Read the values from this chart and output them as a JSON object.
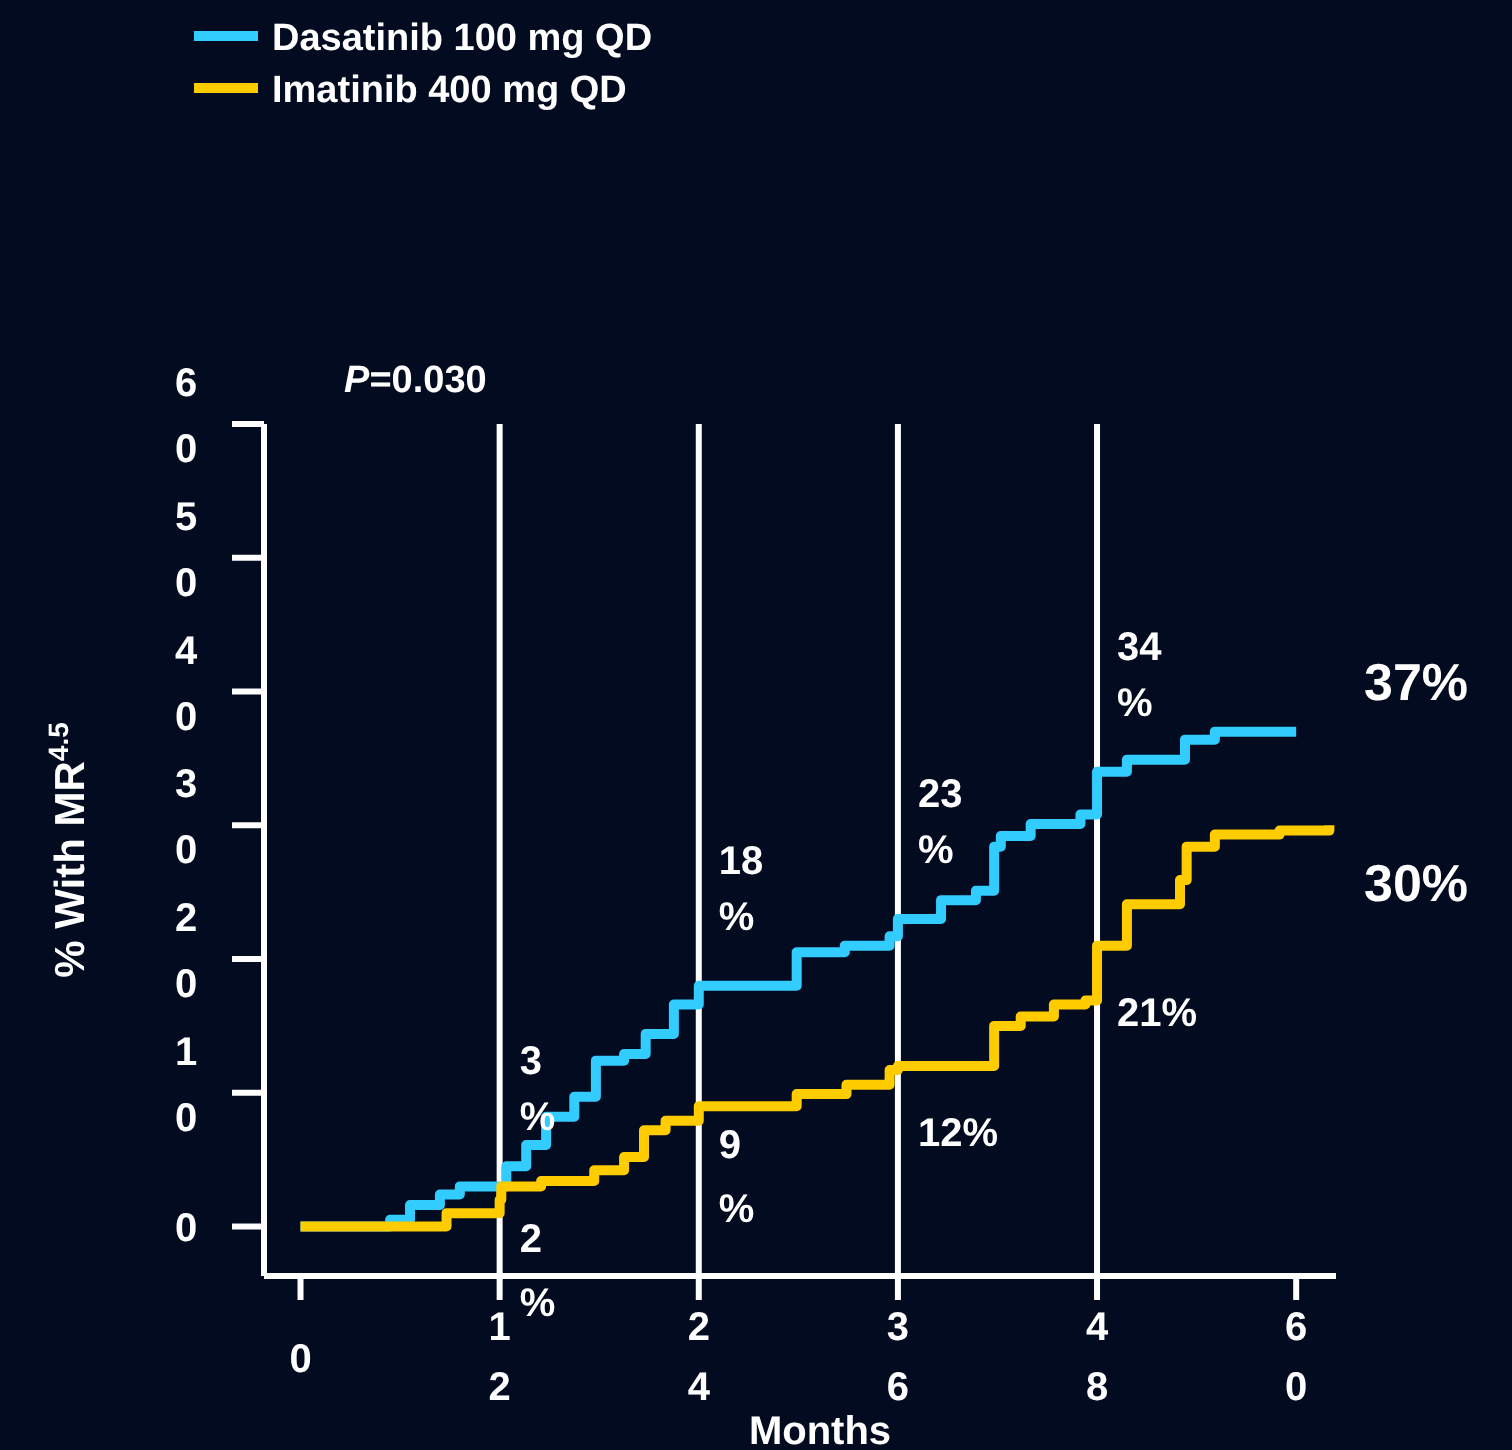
{
  "chart_data": {
    "type": "step",
    "xlabel": "Months",
    "ylabel": "% With MR$^{4.5}$",
    "annotations": [
      "P=0.030"
    ],
    "xlim": [
      -2.2,
      62.4
    ],
    "ylim": [
      -3.7,
      60
    ],
    "xticks": [
      0,
      12,
      24,
      36,
      48,
      60
    ],
    "yticks": [
      0,
      10,
      20,
      30,
      40,
      50,
      60
    ],
    "grid": false,
    "legend": "top left",
    "marker": "none",
    "line_style": "solid",
    "ref_lines": [
      {
        "axis": "x",
        "value": 12,
        "color": "#ffffff"
      },
      {
        "axis": "x",
        "value": 24,
        "color": "#ffffff"
      },
      {
        "axis": "x",
        "value": 36,
        "color": "#ffffff"
      },
      {
        "axis": "x",
        "value": 48,
        "color": "#ffffff"
      }
    ],
    "series": [
      {
        "name": "Dasatinib 100 mg QD",
        "color": "#33ccff",
        "x": [
          0,
          5.4,
          6.6,
          8.4,
          9.6,
          12,
          12.4,
          13.6,
          14.8,
          16.5,
          17.8,
          19.5,
          20.8,
          22.5,
          24,
          29.9,
          32.8,
          35.5,
          36,
          38.6,
          40.7,
          41.8,
          42.2,
          44,
          47,
          48,
          49.8,
          53.3,
          55.1,
          60
        ],
        "values": [
          0,
          0.5,
          1.6,
          2.4,
          3.0,
          3,
          4.5,
          6.1,
          8.2,
          9.7,
          12.4,
          12.9,
          14.4,
          16.6,
          18,
          20.5,
          21.0,
          21.7,
          23,
          24.4,
          25.1,
          28.4,
          29.2,
          30.1,
          30.8,
          34,
          34.9,
          36.4,
          37,
          37
        ],
        "value_labels": [
          null,
          null,
          null,
          null,
          null,
          "3%",
          null,
          null,
          null,
          null,
          null,
          null,
          null,
          null,
          "18%",
          null,
          null,
          null,
          "23%",
          null,
          null,
          null,
          null,
          null,
          null,
          "34%",
          null,
          null,
          null,
          "37%"
        ]
      },
      {
        "name": "Imatinib 400 mg QD",
        "color": "#ffcc00",
        "x": [
          0,
          8.8,
          12,
          12.1,
          14.5,
          17.7,
          19.5,
          20.7,
          22,
          24,
          29.9,
          32.9,
          35.5,
          36,
          41.8,
          43.4,
          45.4,
          47.3,
          48,
          49.8,
          53,
          53.4,
          55.1,
          59,
          62
        ],
        "values": [
          0,
          1.0,
          2,
          3.0,
          3.4,
          4.2,
          5.2,
          7.2,
          7.9,
          9,
          9.9,
          10.6,
          11.7,
          12,
          15.0,
          15.7,
          16.6,
          16.9,
          21,
          24.1,
          25.9,
          28.4,
          29.3,
          29.6,
          30
        ],
        "value_labels": [
          null,
          null,
          "2%",
          null,
          null,
          null,
          null,
          null,
          null,
          "9%",
          null,
          null,
          null,
          "12%",
          null,
          null,
          null,
          null,
          "21%",
          null,
          null,
          null,
          null,
          null,
          "30%"
        ]
      }
    ]
  }
}
